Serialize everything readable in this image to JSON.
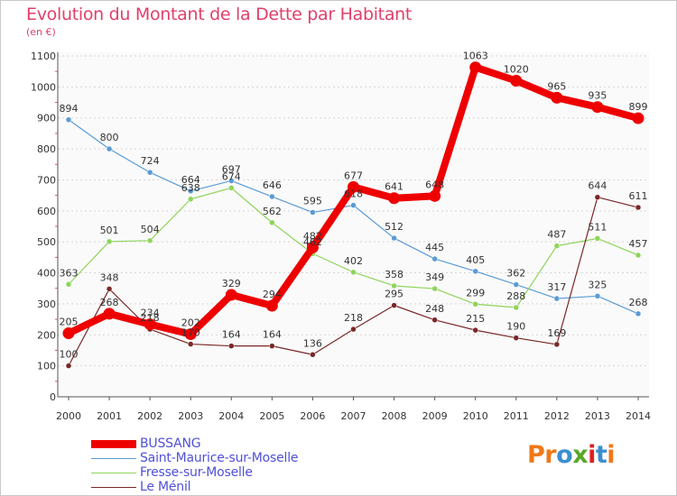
{
  "header": {
    "title": "Evolution du Montant de la Dette par Habitant",
    "unit": "(en €)"
  },
  "logo": {
    "letters": [
      "P",
      "r",
      "o",
      "x",
      "i",
      "t",
      "i"
    ],
    "colors": [
      "#f07818",
      "#f07818",
      "#3a8fd0",
      "#58a828",
      "#e02020",
      "#3a8fd0",
      "#f07818"
    ]
  },
  "chart_data": {
    "type": "line",
    "title": "Evolution du Montant de la Dette par Habitant",
    "ylabel": "(en €)",
    "xlabel": "",
    "x": [
      "2000",
      "2001",
      "2002",
      "2003",
      "2004",
      "2005",
      "2006",
      "2007",
      "2008",
      "2009",
      "2010",
      "2011",
      "2012",
      "2013",
      "2014"
    ],
    "ylim": [
      0,
      1100
    ],
    "yticks": [
      "0",
      "100",
      "200",
      "300",
      "400",
      "500",
      "600",
      "700",
      "800",
      "900",
      "1000",
      "1100"
    ],
    "grid": "horizontal",
    "legend_position": "bottom-left",
    "series": [
      {
        "name": "Saint-Maurice-sur-Moselle",
        "color": "#5b9bd5",
        "values": [
          894,
          800,
          724,
          664,
          697,
          646,
          595,
          618,
          512,
          445,
          405,
          362,
          317,
          325,
          268
        ],
        "labels": [
          "894",
          "800",
          "724",
          "664",
          "697",
          "646",
          "595",
          "618",
          "512",
          "445",
          "405",
          "362",
          "317",
          "325",
          "268"
        ]
      },
      {
        "name": "Fresse-sur-Moselle",
        "color": "#8ed45a",
        "values": [
          363,
          501,
          504,
          638,
          674,
          562,
          462,
          402,
          358,
          349,
          299,
          288,
          487,
          511,
          457
        ],
        "labels": [
          "363",
          "501",
          "504",
          "638",
          "674",
          "562",
          "462",
          "402",
          "358",
          "349",
          "299",
          "288",
          "487",
          "511",
          "457"
        ]
      },
      {
        "name": "Le Ménil",
        "color": "#7a2828",
        "values": [
          100,
          348,
          218,
          170,
          164,
          164,
          136,
          218,
          295,
          248,
          215,
          190,
          169,
          644,
          611
        ],
        "labels": [
          "100",
          "348",
          "218",
          "170",
          "164",
          "164",
          "136",
          "218",
          "295",
          "248",
          "215",
          "190",
          "169",
          "644",
          "611"
        ]
      },
      {
        "name": "BUSSANG",
        "color": "#ee0000",
        "values": [
          205,
          268,
          234,
          202,
          329,
          294,
          482,
          677,
          641,
          648,
          1063,
          1020,
          965,
          935,
          899
        ],
        "labels": [
          "205",
          "268",
          "234",
          "202",
          "329",
          "294",
          "482",
          "677",
          "641",
          "648",
          "1063",
          "1020",
          "965",
          "935",
          "899"
        ]
      }
    ]
  }
}
